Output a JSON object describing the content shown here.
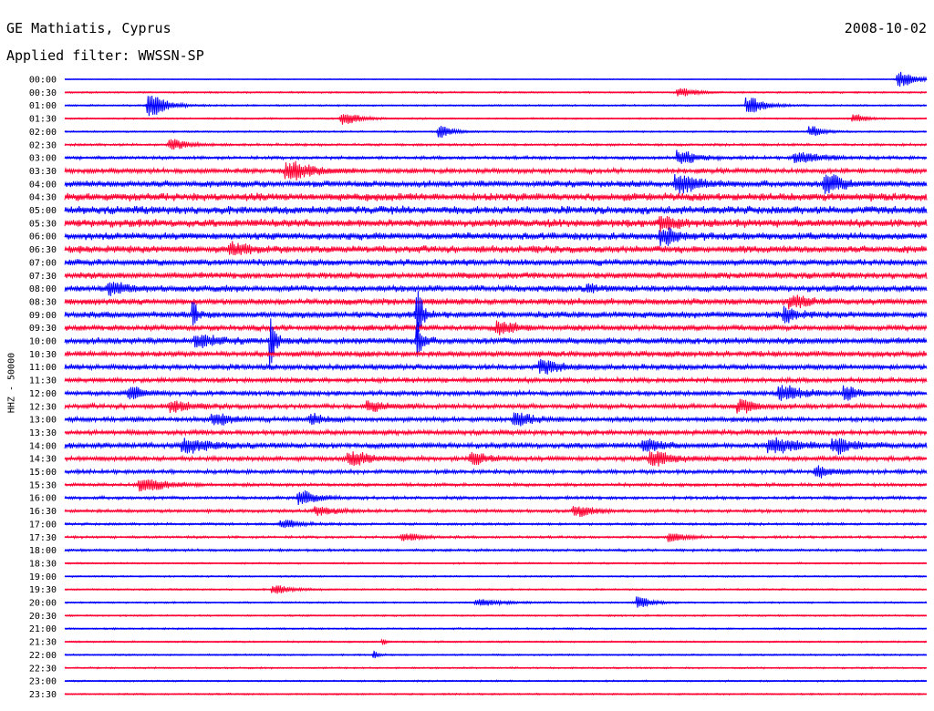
{
  "header": {
    "station": "GE Mathiatis, Cyprus",
    "date": "2008-10-02",
    "filter": "Applied filter: WWSSN-SP"
  },
  "chart_data": {
    "type": "line",
    "title": "",
    "ylabel": "HHZ - 50000",
    "colors": [
      "#0000ff",
      "#ff0033"
    ],
    "row_labels": [
      "00:00",
      "00:30",
      "01:00",
      "01:30",
      "02:00",
      "02:30",
      "03:00",
      "03:30",
      "04:00",
      "04:30",
      "05:00",
      "05:30",
      "06:00",
      "06:30",
      "07:00",
      "07:30",
      "08:00",
      "08:30",
      "09:00",
      "09:30",
      "10:00",
      "10:30",
      "11:00",
      "11:30",
      "12:00",
      "12:30",
      "13:00",
      "13:30",
      "14:00",
      "14:30",
      "15:00",
      "15:30",
      "16:00",
      "16:30",
      "17:00",
      "17:30",
      "18:00",
      "18:30",
      "19:00",
      "19:30",
      "20:00",
      "20:30",
      "21:00",
      "21:30",
      "22:00",
      "22:30",
      "23:00",
      "23:30"
    ],
    "noise_level": [
      0.5,
      1,
      1,
      1,
      1,
      1.5,
      2,
      3,
      4,
      5,
      5,
      5,
      4.5,
      4.5,
      4,
      4,
      4,
      4,
      4,
      3.5,
      4,
      3.5,
      3.5,
      3,
      3,
      3,
      3,
      3,
      3.5,
      3,
      2.5,
      2,
      2,
      2,
      1.5,
      1.5,
      1.5,
      1,
      1,
      1,
      1,
      1,
      1,
      1,
      1,
      1,
      1,
      1
    ],
    "bursts": [
      {
        "row": 0,
        "t": 0.975,
        "amp": 8,
        "width": 0.02
      },
      {
        "row": 1,
        "t": 0.72,
        "amp": 4,
        "width": 0.02
      },
      {
        "row": 2,
        "t": 0.105,
        "amp": 12,
        "width": 0.02
      },
      {
        "row": 2,
        "t": 0.8,
        "amp": 8,
        "width": 0.02
      },
      {
        "row": 3,
        "t": 0.33,
        "amp": 6,
        "width": 0.02
      },
      {
        "row": 3,
        "t": 0.92,
        "amp": 4,
        "width": 0.015
      },
      {
        "row": 4,
        "t": 0.44,
        "amp": 6,
        "width": 0.015
      },
      {
        "row": 4,
        "t": 0.87,
        "amp": 5,
        "width": 0.015
      },
      {
        "row": 5,
        "t": 0.13,
        "amp": 5,
        "width": 0.02
      },
      {
        "row": 6,
        "t": 0.72,
        "amp": 7,
        "width": 0.02
      },
      {
        "row": 6,
        "t": 0.86,
        "amp": 5,
        "width": 0.03
      },
      {
        "row": 7,
        "t": 0.27,
        "amp": 8,
        "width": 0.03
      },
      {
        "row": 8,
        "t": 0.72,
        "amp": 8,
        "width": 0.025
      },
      {
        "row": 8,
        "t": 0.89,
        "amp": 9,
        "width": 0.02
      },
      {
        "row": 11,
        "t": 0.7,
        "amp": 6,
        "width": 0.02
      },
      {
        "row": 12,
        "t": 0.7,
        "amp": 7,
        "width": 0.02
      },
      {
        "row": 13,
        "t": 0.2,
        "amp": 5,
        "width": 0.02
      },
      {
        "row": 16,
        "t": 0.06,
        "amp": 5,
        "width": 0.02
      },
      {
        "row": 16,
        "t": 0.61,
        "amp": 4,
        "width": 0.01
      },
      {
        "row": 17,
        "t": 0.85,
        "amp": 5,
        "width": 0.02
      },
      {
        "row": 18,
        "t": 0.15,
        "amp": 12,
        "width": 0.006
      },
      {
        "row": 18,
        "t": 0.41,
        "amp": 34,
        "width": 0.006
      },
      {
        "row": 18,
        "t": 0.84,
        "amp": 7,
        "width": 0.015
      },
      {
        "row": 19,
        "t": 0.51,
        "amp": 6,
        "width": 0.02
      },
      {
        "row": 20,
        "t": 0.16,
        "amp": 6,
        "width": 0.02
      },
      {
        "row": 20,
        "t": 0.24,
        "amp": 26,
        "width": 0.006
      },
      {
        "row": 20,
        "t": 0.41,
        "amp": 22,
        "width": 0.006
      },
      {
        "row": 22,
        "t": 0.56,
        "amp": 6,
        "width": 0.02
      },
      {
        "row": 24,
        "t": 0.08,
        "amp": 6,
        "width": 0.015
      },
      {
        "row": 24,
        "t": 0.84,
        "amp": 7,
        "width": 0.025
      },
      {
        "row": 24,
        "t": 0.91,
        "amp": 6,
        "width": 0.015
      },
      {
        "row": 25,
        "t": 0.13,
        "amp": 5,
        "width": 0.02
      },
      {
        "row": 25,
        "t": 0.36,
        "amp": 5,
        "width": 0.02
      },
      {
        "row": 25,
        "t": 0.79,
        "amp": 6,
        "width": 0.02
      },
      {
        "row": 26,
        "t": 0.18,
        "amp": 6,
        "width": 0.02
      },
      {
        "row": 26,
        "t": 0.29,
        "amp": 5,
        "width": 0.015
      },
      {
        "row": 26,
        "t": 0.53,
        "amp": 6,
        "width": 0.02
      },
      {
        "row": 28,
        "t": 0.15,
        "amp": 6,
        "width": 0.03
      },
      {
        "row": 28,
        "t": 0.68,
        "amp": 5,
        "width": 0.02
      },
      {
        "row": 28,
        "t": 0.83,
        "amp": 7,
        "width": 0.03
      },
      {
        "row": 28,
        "t": 0.9,
        "amp": 7,
        "width": 0.02
      },
      {
        "row": 29,
        "t": 0.34,
        "amp": 6,
        "width": 0.025
      },
      {
        "row": 29,
        "t": 0.48,
        "amp": 5,
        "width": 0.02
      },
      {
        "row": 29,
        "t": 0.69,
        "amp": 7,
        "width": 0.025
      },
      {
        "row": 30,
        "t": 0.88,
        "amp": 5,
        "width": 0.02
      },
      {
        "row": 31,
        "t": 0.1,
        "amp": 6,
        "width": 0.03
      },
      {
        "row": 32,
        "t": 0.28,
        "amp": 7,
        "width": 0.02
      },
      {
        "row": 33,
        "t": 0.3,
        "amp": 4,
        "width": 0.02
      },
      {
        "row": 33,
        "t": 0.6,
        "amp": 5,
        "width": 0.02
      },
      {
        "row": 34,
        "t": 0.26,
        "amp": 4,
        "width": 0.02
      },
      {
        "row": 35,
        "t": 0.4,
        "amp": 4,
        "width": 0.02
      },
      {
        "row": 35,
        "t": 0.71,
        "amp": 4,
        "width": 0.02
      },
      {
        "row": 39,
        "t": 0.25,
        "amp": 4,
        "width": 0.02
      },
      {
        "row": 40,
        "t": 0.49,
        "amp": 3,
        "width": 0.03
      },
      {
        "row": 40,
        "t": 0.67,
        "amp": 6,
        "width": 0.015
      },
      {
        "row": 43,
        "t": 0.37,
        "amp": 3,
        "width": 0.005
      },
      {
        "row": 44,
        "t": 0.36,
        "amp": 4,
        "width": 0.005
      }
    ]
  }
}
